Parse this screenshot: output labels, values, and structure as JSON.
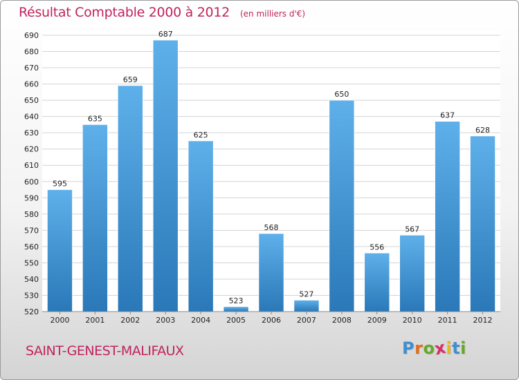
{
  "header": {
    "title": "Résultat Comptable 2000 à 2012",
    "unit": "(en milliers d'€)"
  },
  "footer": {
    "town": "SAINT-GENEST-MALIFAUX",
    "logo": {
      "letters": [
        "P",
        "r",
        "o",
        "x",
        "i",
        "t",
        "i"
      ],
      "colors": [
        "#3f8fd0",
        "#e06c1c",
        "#66a829",
        "#d62f6a",
        "#e9b51c",
        "#3f8fd0",
        "#66a829"
      ]
    }
  },
  "colors": {
    "bar_top": "#5eb0ea",
    "bar_bottom": "#2a78b8",
    "grid": "#d3d3d3",
    "axis_text": "#222222"
  },
  "chart_data": {
    "type": "bar",
    "title": "Résultat Comptable 2000 à 2012",
    "xlabel": "",
    "ylabel": "",
    "ylim": [
      520,
      690
    ],
    "yticks": [
      520,
      530,
      540,
      550,
      560,
      570,
      580,
      590,
      600,
      610,
      620,
      630,
      640,
      650,
      660,
      670,
      680,
      690
    ],
    "grid": true,
    "categories": [
      "2000",
      "2001",
      "2002",
      "2003",
      "2004",
      "2005",
      "2006",
      "2007",
      "2008",
      "2009",
      "2010",
      "2011",
      "2012"
    ],
    "values": [
      595,
      635,
      659,
      687,
      625,
      523,
      568,
      527,
      650,
      556,
      567,
      637,
      628
    ]
  }
}
